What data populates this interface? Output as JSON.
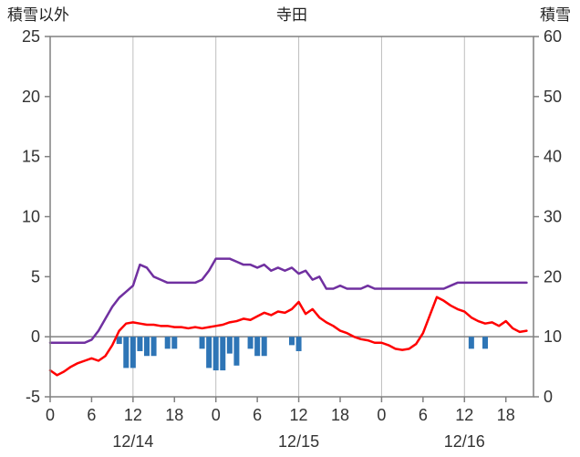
{
  "header": {
    "left_axis_title": "積雪以外",
    "chart_title": "寺田",
    "right_axis_title": "積雪"
  },
  "chart_data": {
    "type": "line",
    "title": "寺田",
    "left_axis": {
      "label": "積雪以外",
      "min": -5,
      "max": 25,
      "ticks": [
        25,
        20,
        15,
        10,
        5,
        0,
        -5
      ]
    },
    "right_axis": {
      "label": "積雪",
      "min": 0,
      "max": 60,
      "ticks": [
        60,
        50,
        40,
        30,
        20,
        10,
        0
      ]
    },
    "x_axis": {
      "start_hour": 0,
      "end_hour": 70,
      "tick_interval": 6,
      "tick_labels": [
        "0",
        "6",
        "12",
        "18",
        "0",
        "6",
        "12",
        "18",
        "0",
        "6",
        "12",
        "18"
      ],
      "date_labels": [
        "12/14",
        "12/15",
        "12/16"
      ],
      "gridline_every": 12
    },
    "colors": {
      "purple": "#7030A0",
      "red": "#FF0000",
      "blue": "#2E75B6",
      "grid": "#BEBEBE",
      "border": "#808080",
      "zero": "#808080",
      "text": "#333333"
    },
    "series": [
      {
        "name": "purple-line",
        "axis": "right",
        "type": "line",
        "color": "#7030A0",
        "values": [
          9,
          9,
          9,
          9,
          9,
          9,
          9.5,
          11,
          13,
          15,
          16.5,
          17.5,
          18.5,
          22,
          21.5,
          20,
          19.5,
          19,
          19,
          19,
          19,
          19,
          19.5,
          21,
          23,
          23,
          23,
          22.5,
          22,
          22,
          21.5,
          22,
          21,
          21.5,
          21,
          21.5,
          20.5,
          21,
          19.5,
          20,
          18,
          18,
          18.5,
          18,
          18,
          18,
          18.5,
          18,
          18,
          18,
          18,
          18,
          18,
          18,
          18,
          18,
          18,
          18,
          18.5,
          19,
          19,
          19,
          19,
          19,
          19,
          19,
          19,
          19,
          19,
          19
        ]
      },
      {
        "name": "red-line",
        "axis": "left",
        "type": "line",
        "color": "#FF0000",
        "values": [
          -2.8,
          -3.2,
          -2.9,
          -2.5,
          -2.2,
          -2.0,
          -1.8,
          -2.0,
          -1.6,
          -0.7,
          0.5,
          1.1,
          1.2,
          1.1,
          1.0,
          1.0,
          0.9,
          0.9,
          0.8,
          0.8,
          0.7,
          0.8,
          0.7,
          0.8,
          0.9,
          1.0,
          1.2,
          1.3,
          1.5,
          1.4,
          1.7,
          2.0,
          1.8,
          2.1,
          2.0,
          2.3,
          2.9,
          1.9,
          2.3,
          1.6,
          1.2,
          0.9,
          0.5,
          0.3,
          0.0,
          -0.2,
          -0.3,
          -0.5,
          -0.5,
          -0.7,
          -1.0,
          -1.1,
          -1.0,
          -0.6,
          0.3,
          1.8,
          3.3,
          3.0,
          2.6,
          2.3,
          2.1,
          1.6,
          1.3,
          1.1,
          1.2,
          0.9,
          1.3,
          0.7,
          0.4,
          0.5
        ]
      },
      {
        "name": "blue-bars",
        "axis": "left",
        "type": "bar",
        "color": "#2E75B6",
        "points": [
          {
            "h": 10,
            "v": -0.6
          },
          {
            "h": 11,
            "v": -2.6
          },
          {
            "h": 12,
            "v": -2.6
          },
          {
            "h": 13,
            "v": -1.2
          },
          {
            "h": 14,
            "v": -1.6
          },
          {
            "h": 15,
            "v": -1.6
          },
          {
            "h": 17,
            "v": -1.0
          },
          {
            "h": 18,
            "v": -1.0
          },
          {
            "h": 22,
            "v": -1.0
          },
          {
            "h": 23,
            "v": -2.6
          },
          {
            "h": 24,
            "v": -2.8
          },
          {
            "h": 25,
            "v": -2.8
          },
          {
            "h": 26,
            "v": -1.4
          },
          {
            "h": 27,
            "v": -2.4
          },
          {
            "h": 29,
            "v": -1.0
          },
          {
            "h": 30,
            "v": -1.6
          },
          {
            "h": 31,
            "v": -1.6
          },
          {
            "h": 35,
            "v": -0.7
          },
          {
            "h": 36,
            "v": -1.2
          },
          {
            "h": 61,
            "v": -1.0
          },
          {
            "h": 63,
            "v": -1.0
          }
        ]
      }
    ]
  }
}
